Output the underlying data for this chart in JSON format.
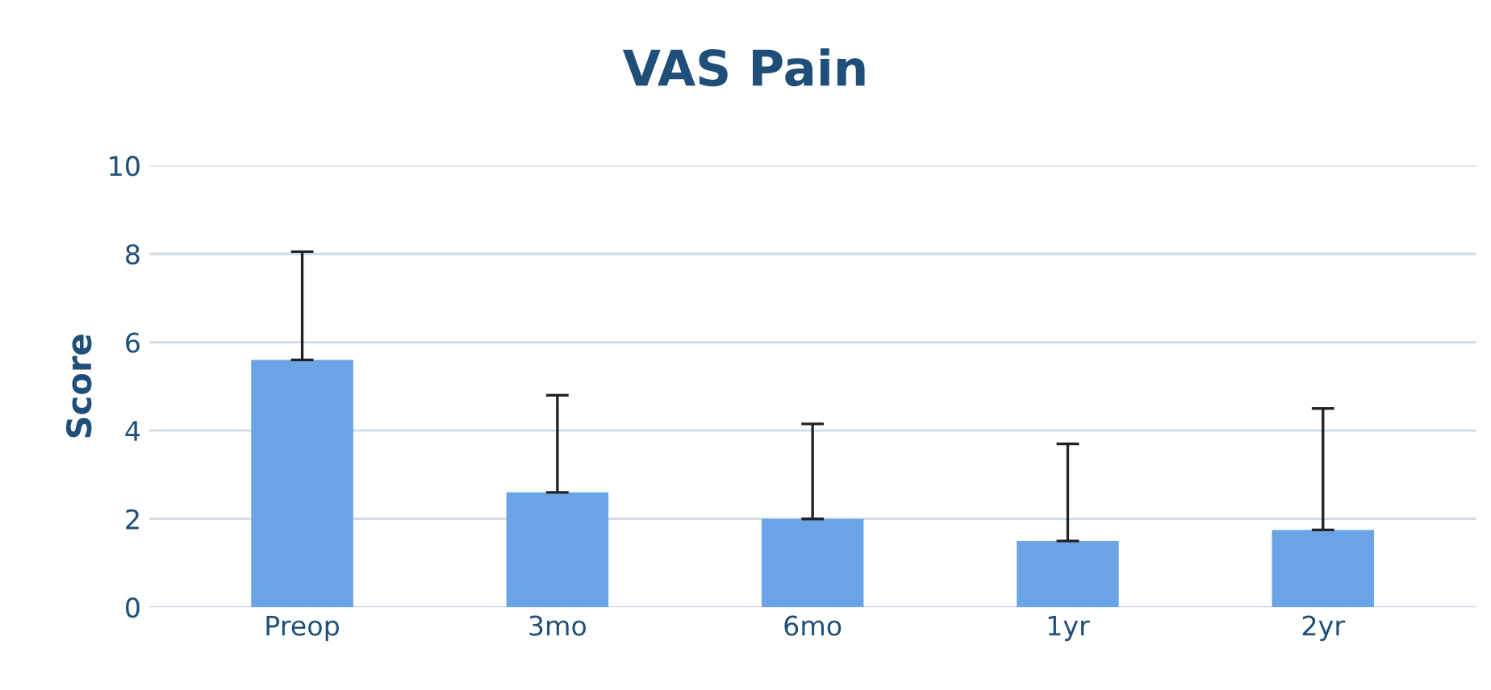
{
  "chart_data": {
    "type": "bar",
    "title": "VAS Pain",
    "ylabel": "Score",
    "categories": [
      "Preop",
      "3mo",
      "6mo",
      "1yr",
      "2yr"
    ],
    "values": [
      5.6,
      2.6,
      2.0,
      1.5,
      1.75
    ],
    "errors": [
      [
        5.6,
        8.05
      ],
      [
        2.6,
        4.8
      ],
      [
        2.0,
        4.15
      ],
      [
        1.5,
        3.7
      ],
      [
        1.75,
        4.5
      ]
    ],
    "color": "#6aa3e6",
    "ylim": [
      0,
      10
    ],
    "yticks": [
      0,
      2,
      4,
      6,
      8,
      10
    ],
    "grid": "y"
  }
}
